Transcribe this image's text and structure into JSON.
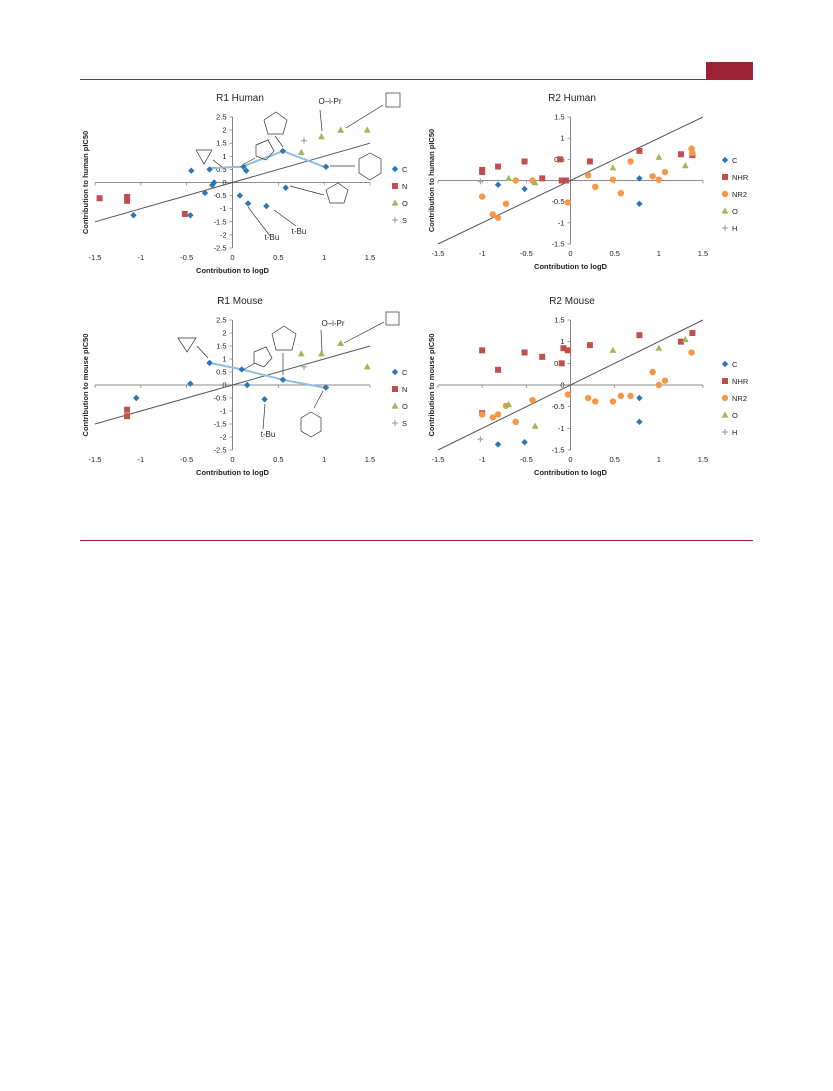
{
  "header": {
    "accent_color": "#9b2335"
  },
  "colors": {
    "C": "#2e75b6",
    "N": "#c0504d",
    "NHR": "#c0504d",
    "O": "#9bbb59",
    "NR2": "#f79646",
    "S": "#a6a6a6",
    "H": "#a6a6a6",
    "trend": "#555555",
    "highlight": "#8fbfe0"
  },
  "chart_data": [
    {
      "type": "scatter",
      "title": "R1 Human",
      "xlabel": "Contribution to logD",
      "ylabel": "Contribution to human pIC50",
      "xlim": [
        -1.5,
        1.5
      ],
      "ylim": [
        -2.5,
        2.5
      ],
      "xticks": [
        "-1.5",
        "-1",
        "-0.5",
        "0",
        "0.5",
        "1",
        "1.5"
      ],
      "yticks": [
        "2.5",
        "2",
        "1.5",
        "1",
        "0.5",
        "0",
        "-0.5",
        "-1",
        "-1.5",
        "-2",
        "-2.5"
      ],
      "trend": [
        [
          -1.5,
          -1.5
        ],
        [
          1.5,
          1.5
        ]
      ],
      "highlight": [
        [
          -0.25,
          0.55
        ],
        [
          0.1,
          0.6
        ],
        [
          0.55,
          1.2
        ],
        [
          1.0,
          0.6
        ]
      ],
      "annotations": [
        "t-Bu",
        "t-Bu",
        "O–i-Pr"
      ],
      "series": [
        {
          "name": "C",
          "marker": "diamond",
          "points": [
            [
              -1.08,
              -1.25
            ],
            [
              -0.46,
              -1.25
            ],
            [
              -0.45,
              0.45
            ],
            [
              -0.3,
              -0.4
            ],
            [
              -0.25,
              0.5
            ],
            [
              -0.22,
              -0.1
            ],
            [
              -0.2,
              0.0
            ],
            [
              0.08,
              -0.5
            ],
            [
              0.12,
              0.6
            ],
            [
              0.15,
              0.45
            ],
            [
              0.17,
              -0.8
            ],
            [
              0.37,
              -0.9
            ],
            [
              0.55,
              1.2
            ],
            [
              0.58,
              -0.2
            ],
            [
              1.02,
              0.6
            ]
          ]
        },
        {
          "name": "N",
          "marker": "square",
          "points": [
            [
              -1.45,
              -0.6
            ],
            [
              -1.15,
              -0.55
            ],
            [
              -1.15,
              -0.7
            ],
            [
              -0.52,
              -1.2
            ]
          ]
        },
        {
          "name": "O",
          "marker": "triangle",
          "points": [
            [
              0.75,
              1.15
            ],
            [
              0.97,
              1.75
            ],
            [
              1.18,
              2.0
            ],
            [
              1.47,
              2.0
            ]
          ]
        },
        {
          "name": "S",
          "marker": "cross",
          "points": [
            [
              0.78,
              1.6
            ]
          ]
        }
      ]
    },
    {
      "type": "scatter",
      "title": "R2 Human",
      "xlabel": "Contribution to logD",
      "ylabel": "Contribution to human pIC50",
      "xlim": [
        -1.5,
        1.5
      ],
      "ylim": [
        -1.5,
        1.5
      ],
      "xticks": [
        "-1.5",
        "-1",
        "-0.5",
        "0",
        "0.5",
        "1",
        "1.5"
      ],
      "yticks": [
        "1.5",
        "1",
        "0.5",
        "0",
        "-0.5",
        "-1",
        "-1.5"
      ],
      "trend": [
        [
          -1.5,
          -1.5
        ],
        [
          1.5,
          1.5
        ]
      ],
      "series": [
        {
          "name": "C",
          "marker": "diamond",
          "points": [
            [
              -0.82,
              -0.1
            ],
            [
              -0.52,
              -0.2
            ],
            [
              0.78,
              0.05
            ],
            [
              0.78,
              -0.55
            ]
          ]
        },
        {
          "name": "NHR",
          "marker": "square",
          "points": [
            [
              -1.0,
              0.2
            ],
            [
              -1.0,
              0.25
            ],
            [
              -0.82,
              0.33
            ],
            [
              -0.52,
              0.45
            ],
            [
              -0.32,
              0.05
            ],
            [
              -0.12,
              0.5
            ],
            [
              -0.1,
              0.0
            ],
            [
              -0.05,
              0.0
            ],
            [
              0.22,
              0.45
            ],
            [
              0.78,
              0.7
            ],
            [
              1.25,
              0.62
            ],
            [
              1.38,
              0.6
            ]
          ]
        },
        {
          "name": "NR2",
          "marker": "circle",
          "points": [
            [
              -1.0,
              -0.38
            ],
            [
              -0.88,
              -0.8
            ],
            [
              -0.82,
              -0.88
            ],
            [
              -0.73,
              -0.55
            ],
            [
              -0.62,
              0.0
            ],
            [
              -0.43,
              0.0
            ],
            [
              -0.03,
              -0.52
            ],
            [
              0.2,
              0.12
            ],
            [
              0.28,
              -0.15
            ],
            [
              0.48,
              0.02
            ],
            [
              0.57,
              -0.3
            ],
            [
              0.68,
              0.45
            ],
            [
              0.93,
              0.1
            ],
            [
              1.0,
              0.02
            ],
            [
              1.07,
              0.2
            ],
            [
              1.37,
              0.75
            ],
            [
              1.38,
              0.65
            ]
          ]
        },
        {
          "name": "O",
          "marker": "triangle",
          "points": [
            [
              -0.7,
              0.05
            ],
            [
              -0.4,
              -0.05
            ],
            [
              0.48,
              0.3
            ],
            [
              1.0,
              0.55
            ],
            [
              1.3,
              0.35
            ]
          ]
        },
        {
          "name": "H",
          "marker": "cross",
          "points": [
            [
              -1.02,
              -0.02
            ]
          ]
        }
      ]
    },
    {
      "type": "scatter",
      "title": "R1 Mouse",
      "xlabel": "Contribution to logD",
      "ylabel": "Contribution to mouse pIC50",
      "xlim": [
        -1.5,
        1.5
      ],
      "ylim": [
        -2.5,
        2.5
      ],
      "xticks": [
        "-1.5",
        "-1",
        "-0.5",
        "0",
        "0.5",
        "1",
        "1.5"
      ],
      "yticks": [
        "2.5",
        "2",
        "1.5",
        "1",
        "0.5",
        "0",
        "-0.5",
        "-1",
        "-1.5",
        "-2",
        "-2.5"
      ],
      "trend": [
        [
          -1.5,
          -1.5
        ],
        [
          1.5,
          1.5
        ]
      ],
      "highlight": [
        [
          -0.25,
          0.85
        ],
        [
          0.1,
          0.6
        ],
        [
          0.55,
          0.2
        ],
        [
          1.0,
          -0.1
        ]
      ],
      "annotations": [
        "t-Bu",
        "O–i-Pr"
      ],
      "series": [
        {
          "name": "C",
          "marker": "diamond",
          "points": [
            [
              -1.05,
              -0.5
            ],
            [
              -0.46,
              0.05
            ],
            [
              -0.25,
              0.85
            ],
            [
              0.1,
              0.6
            ],
            [
              0.16,
              0.0
            ],
            [
              0.35,
              -0.55
            ],
            [
              0.55,
              0.2
            ],
            [
              1.02,
              -0.1
            ]
          ]
        },
        {
          "name": "N",
          "marker": "square",
          "points": [
            [
              -1.15,
              -0.95
            ],
            [
              -1.15,
              -1.2
            ]
          ]
        },
        {
          "name": "O",
          "marker": "triangle",
          "points": [
            [
              0.75,
              1.2
            ],
            [
              0.97,
              1.2
            ],
            [
              1.18,
              1.6
            ],
            [
              1.47,
              0.7
            ]
          ]
        },
        {
          "name": "S",
          "marker": "cross",
          "points": [
            [
              0.78,
              0.7
            ]
          ]
        }
      ]
    },
    {
      "type": "scatter",
      "title": "R2 Mouse",
      "xlabel": "Contribution to logD",
      "ylabel": "Contribution to mouse pIC50",
      "xlim": [
        -1.5,
        1.5
      ],
      "ylim": [
        -1.5,
        1.5
      ],
      "xticks": [
        "-1.5",
        "-1",
        "-0.5",
        "0",
        "0.5",
        "1",
        "1.5"
      ],
      "yticks": [
        "1.5",
        "1",
        "0.5",
        "0",
        "-0.5",
        "-1",
        "-1.5"
      ],
      "trend": [
        [
          -1.5,
          -1.5
        ],
        [
          1.5,
          1.5
        ]
      ],
      "series": [
        {
          "name": "C",
          "marker": "diamond",
          "points": [
            [
              -0.82,
              -1.37
            ],
            [
              -0.52,
              -1.32
            ],
            [
              0.78,
              -0.3
            ],
            [
              0.78,
              -0.85
            ]
          ]
        },
        {
          "name": "NHR",
          "marker": "square",
          "points": [
            [
              -1.0,
              0.8
            ],
            [
              -1.0,
              -0.65
            ],
            [
              -0.82,
              0.35
            ],
            [
              -0.52,
              0.75
            ],
            [
              -0.32,
              0.65
            ],
            [
              -0.1,
              0.5
            ],
            [
              -0.08,
              0.85
            ],
            [
              -0.03,
              0.8
            ],
            [
              0.22,
              0.92
            ],
            [
              0.78,
              1.15
            ],
            [
              1.25,
              1.0
            ],
            [
              1.38,
              1.2
            ]
          ]
        },
        {
          "name": "NR2",
          "marker": "circle",
          "points": [
            [
              -1.0,
              -0.68
            ],
            [
              -0.88,
              -0.75
            ],
            [
              -0.82,
              -0.68
            ],
            [
              -0.73,
              -0.48
            ],
            [
              -0.62,
              -0.85
            ],
            [
              -0.43,
              -0.35
            ],
            [
              -0.03,
              -0.22
            ],
            [
              0.2,
              -0.3
            ],
            [
              0.28,
              -0.38
            ],
            [
              0.48,
              -0.38
            ],
            [
              0.57,
              -0.25
            ],
            [
              0.68,
              -0.25
            ],
            [
              0.93,
              0.3
            ],
            [
              1.0,
              0.0
            ],
            [
              1.07,
              0.1
            ],
            [
              1.37,
              0.75
            ]
          ]
        },
        {
          "name": "O",
          "marker": "triangle",
          "points": [
            [
              -0.7,
              -0.45
            ],
            [
              -0.4,
              -0.95
            ],
            [
              0.48,
              0.8
            ],
            [
              1.0,
              0.85
            ],
            [
              1.3,
              1.05
            ]
          ]
        },
        {
          "name": "H",
          "marker": "cross",
          "points": [
            [
              -1.02,
              -1.25
            ]
          ]
        }
      ]
    }
  ]
}
